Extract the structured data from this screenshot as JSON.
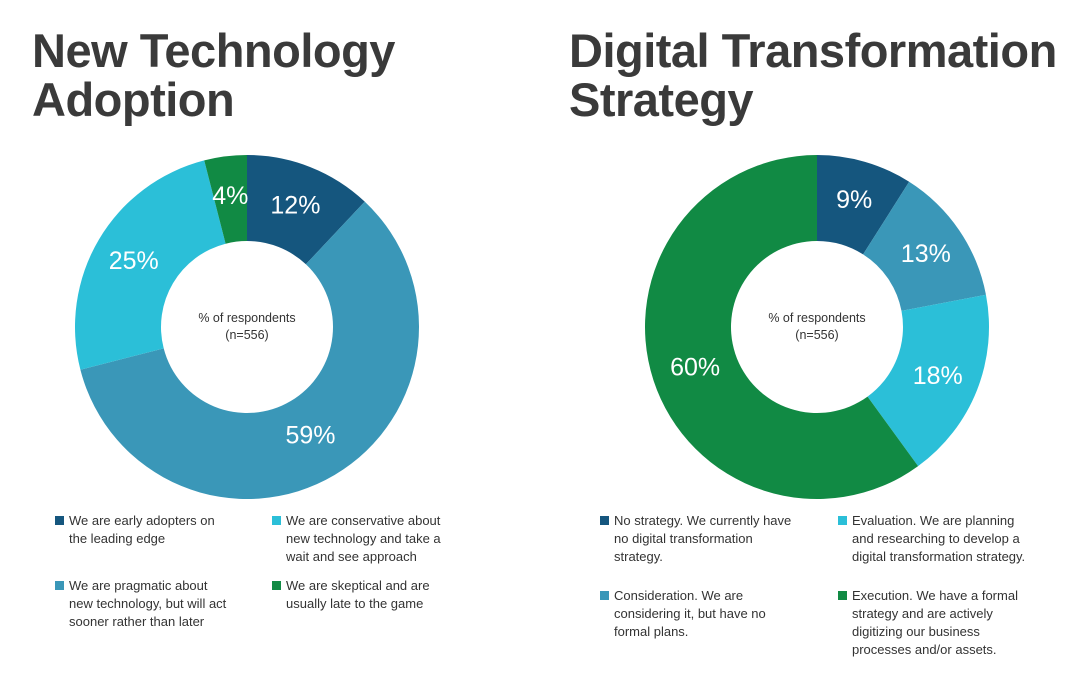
{
  "chart_data": [
    {
      "type": "pie",
      "title": "New Technology Adoption",
      "center_label": [
        "% of respondents",
        "(n=556)"
      ],
      "slices": [
        {
          "label": "We are early adopters on the leading edge",
          "value": 12,
          "display": "12%",
          "color": "#15567e"
        },
        {
          "label": "We are pragmatic about new technology, but will act sooner rather than later",
          "value": 59,
          "display": "59%",
          "color": "#3a97b8"
        },
        {
          "label": "We are conservative about new technology and take a wait and see approach",
          "value": 25,
          "display": "25%",
          "color": "#2bbfd8"
        },
        {
          "label": "We are skeptical and are usually late to the game",
          "value": 4,
          "display": "4%",
          "color": "#118a44"
        }
      ],
      "legend": [
        [
          "We are early adopters on",
          "the leading edge"
        ],
        [
          "We are conservative about",
          "new technology and take a",
          "wait and see approach"
        ],
        [
          "We are pragmatic about",
          "new technology, but will act",
          "sooner rather than later"
        ],
        [
          "We are skeptical and are",
          "usually late to the game"
        ]
      ]
    },
    {
      "type": "pie",
      "title": "Digital Transformation Strategy",
      "center_label": [
        "% of respondents",
        "(n=556)"
      ],
      "slices": [
        {
          "label": "No strategy. We currently have no digital transformation strategy.",
          "value": 9,
          "display": "9%",
          "color": "#15567e"
        },
        {
          "label": "Consideration. We are considering it, but have no formal plans.",
          "value": 13,
          "display": "13%",
          "color": "#3a97b8"
        },
        {
          "label": "Evaluation. We are planning and researching to develop a digital transformation strategy.",
          "value": 18,
          "display": "18%",
          "color": "#2bbfd8"
        },
        {
          "label": "Execution. We have a formal strategy and are actively digitizing our business processes and/or assets.",
          "value": 60,
          "display": "60%",
          "color": "#118a44"
        }
      ],
      "legend": [
        [
          "No strategy. We currently have",
          "no digital transformation",
          "strategy."
        ],
        [
          "Evaluation. We are planning",
          "and researching to develop a",
          "digital transformation strategy."
        ],
        [
          "Consideration. We are",
          "considering it, but have no",
          "formal plans."
        ],
        [
          "Execution. We have a formal",
          "strategy and are actively",
          "digitizing our business",
          "processes and/or assets."
        ]
      ]
    }
  ]
}
